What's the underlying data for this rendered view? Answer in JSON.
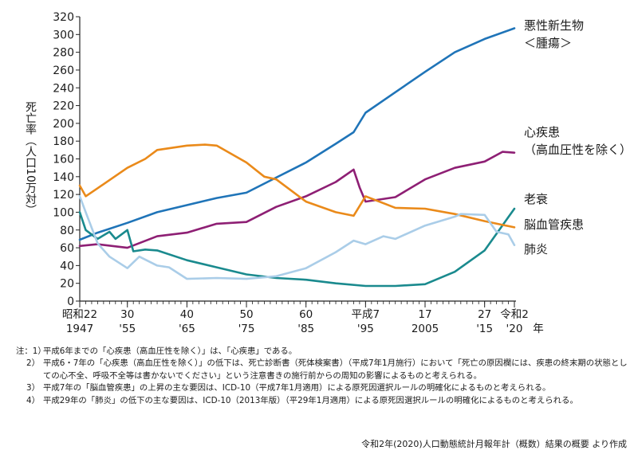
{
  "chart_data": {
    "type": "line",
    "ylabel": "死亡率（人口10万対）",
    "xlabel": "年",
    "ylim": [
      0,
      320
    ],
    "xlim": [
      1947,
      2020
    ],
    "yticks": [
      0,
      20,
      40,
      60,
      80,
      100,
      120,
      140,
      160,
      180,
      200,
      220,
      240,
      260,
      280,
      300,
      320
    ],
    "xticks": [
      {
        "year": 1947,
        "top": "昭和22",
        "bottom": "1947"
      },
      {
        "year": 1955,
        "top": "30",
        "bottom": "'55"
      },
      {
        "year": 1965,
        "top": "40",
        "bottom": "'65"
      },
      {
        "year": 1975,
        "top": "50",
        "bottom": "'75"
      },
      {
        "year": 1985,
        "top": "60",
        "bottom": "'85"
      },
      {
        "year": 1995,
        "top": "平成7",
        "bottom": "'95"
      },
      {
        "year": 2005,
        "top": "17",
        "bottom": "2005"
      },
      {
        "year": 2015,
        "top": "27",
        "bottom": "'15"
      },
      {
        "year": 2020,
        "top": "令和2",
        "bottom": "'20"
      }
    ],
    "grid": false,
    "legend": "direct labels at right end of lines",
    "series": [
      {
        "name": "悪性新生物＜腫瘍＞",
        "color": "#1f74b8",
        "points": [
          [
            1947,
            69
          ],
          [
            1950,
            77
          ],
          [
            1955,
            88
          ],
          [
            1960,
            100
          ],
          [
            1965,
            108
          ],
          [
            1970,
            116
          ],
          [
            1975,
            122
          ],
          [
            1980,
            139
          ],
          [
            1985,
            156
          ],
          [
            1990,
            177
          ],
          [
            1993,
            190
          ],
          [
            1995,
            212
          ],
          [
            2000,
            235
          ],
          [
            2005,
            258
          ],
          [
            2010,
            280
          ],
          [
            2015,
            295
          ],
          [
            2020,
            307
          ]
        ]
      },
      {
        "name": "心疾患（高血圧性を除く）",
        "color": "#8e1f74",
        "points": [
          [
            1947,
            62
          ],
          [
            1950,
            64
          ],
          [
            1955,
            60
          ],
          [
            1960,
            73
          ],
          [
            1965,
            77
          ],
          [
            1970,
            87
          ],
          [
            1975,
            89
          ],
          [
            1980,
            106
          ],
          [
            1985,
            118
          ],
          [
            1990,
            134
          ],
          [
            1993,
            148
          ],
          [
            1994,
            128
          ],
          [
            1995,
            112
          ],
          [
            2000,
            117
          ],
          [
            2005,
            137
          ],
          [
            2010,
            150
          ],
          [
            2015,
            157
          ],
          [
            2018,
            168
          ],
          [
            2020,
            167
          ]
        ]
      },
      {
        "name": "老衰",
        "color": "#1a8a8e",
        "points": [
          [
            1947,
            100
          ],
          [
            1948,
            80
          ],
          [
            1950,
            70
          ],
          [
            1952,
            78
          ],
          [
            1953,
            70
          ],
          [
            1955,
            80
          ],
          [
            1956,
            56
          ],
          [
            1958,
            58
          ],
          [
            1960,
            57
          ],
          [
            1965,
            46
          ],
          [
            1970,
            38
          ],
          [
            1975,
            30
          ],
          [
            1980,
            26
          ],
          [
            1985,
            24
          ],
          [
            1990,
            20
          ],
          [
            1995,
            17
          ],
          [
            2000,
            17
          ],
          [
            2005,
            19
          ],
          [
            2010,
            33
          ],
          [
            2015,
            57
          ],
          [
            2020,
            104
          ]
        ]
      },
      {
        "name": "脳血管疾患",
        "color": "#ea8a1a",
        "points": [
          [
            1947,
            130
          ],
          [
            1948,
            118
          ],
          [
            1950,
            127
          ],
          [
            1955,
            150
          ],
          [
            1958,
            160
          ],
          [
            1960,
            170
          ],
          [
            1965,
            175
          ],
          [
            1968,
            176
          ],
          [
            1970,
            175
          ],
          [
            1975,
            156
          ],
          [
            1978,
            140
          ],
          [
            1980,
            137
          ],
          [
            1985,
            112
          ],
          [
            1990,
            100
          ],
          [
            1993,
            96
          ],
          [
            1995,
            118
          ],
          [
            2000,
            105
          ],
          [
            2005,
            104
          ],
          [
            2010,
            98
          ],
          [
            2015,
            90
          ],
          [
            2020,
            83
          ]
        ]
      },
      {
        "name": "肺炎",
        "color": "#aacde8",
        "points": [
          [
            1947,
            118
          ],
          [
            1948,
            100
          ],
          [
            1950,
            65
          ],
          [
            1952,
            50
          ],
          [
            1955,
            37
          ],
          [
            1957,
            50
          ],
          [
            1960,
            40
          ],
          [
            1962,
            38
          ],
          [
            1965,
            25
          ],
          [
            1970,
            26
          ],
          [
            1975,
            25
          ],
          [
            1980,
            28
          ],
          [
            1985,
            37
          ],
          [
            1990,
            55
          ],
          [
            1993,
            68
          ],
          [
            1995,
            64
          ],
          [
            1998,
            73
          ],
          [
            2000,
            70
          ],
          [
            2005,
            85
          ],
          [
            2010,
            95
          ],
          [
            2011,
            98
          ],
          [
            2015,
            97
          ],
          [
            2017,
            78
          ],
          [
            2019,
            75
          ],
          [
            2020,
            63
          ]
        ]
      }
    ],
    "labels": [
      {
        "series": 0,
        "lines": [
          "悪性新生物",
          "＜腫瘍＞"
        ]
      },
      {
        "series": 1,
        "lines": [
          "心疾患",
          "（高血圧性を除く）"
        ]
      },
      {
        "series": 2,
        "lines": [
          "老衰"
        ]
      },
      {
        "series": 3,
        "lines": [
          "脳血管疾患"
        ]
      },
      {
        "series": 4,
        "lines": [
          "肺炎"
        ]
      }
    ]
  },
  "notes": [
    {
      "lead": "注：1）",
      "text": "平成6年までの「心疾患（高血圧性を除く）」は、「心疾患」である。"
    },
    {
      "lead": "2）",
      "text": "平成6・7年の「心疾患（高血圧性を除く）」の低下は、死亡診断書（死体検案書）（平成7年1月施行）において「死亡の原因欄には、疾患の終末期の状態としての心不全、呼吸不全等は書かないでください」という注意書きの施行前からの周知の影響によるものと考えられる。"
    },
    {
      "lead": "3）",
      "text": "平成7年の「脳血管疾患」の上昇の主な要因は、ICD-10（平成7年1月適用）による原死因選択ルールの明確化によるものと考えられる。"
    },
    {
      "lead": "4）",
      "text": "平成29年の「肺炎」の低下の主な要因は、ICD-10（2013年版）（平29年1月適用）による原死因選択ルールの明確化によるものと考えられる。"
    }
  ],
  "source": "令和2年(2020)人口動態統計月報年計（概数）結果の概要 より作成"
}
